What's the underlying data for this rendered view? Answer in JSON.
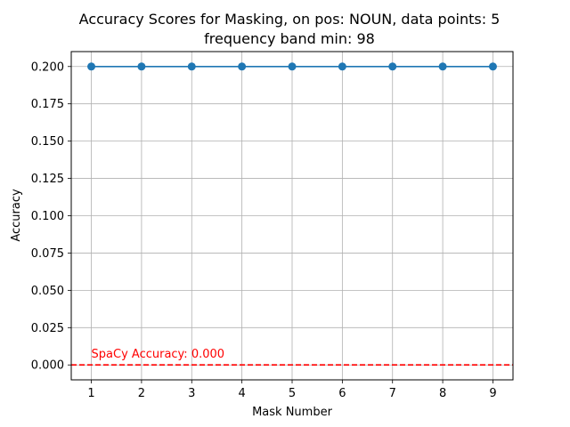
{
  "chart_data": {
    "type": "line",
    "title_line1": "Accuracy Scores for Masking, on pos: NOUN, data points: 5",
    "title_line2": "frequency band min: 98",
    "xlabel": "Mask Number",
    "ylabel": "Accuracy",
    "x": [
      1,
      2,
      3,
      4,
      5,
      6,
      7,
      8,
      9
    ],
    "series": [
      {
        "values": [
          0.2,
          0.2,
          0.2,
          0.2,
          0.2,
          0.2,
          0.2,
          0.2,
          0.2
        ],
        "color": "#1f77b4",
        "marker": "circle"
      }
    ],
    "xlim": [
      0.6,
      9.4
    ],
    "ylim": [
      -0.01,
      0.21
    ],
    "xticks": [
      "1",
      "2",
      "3",
      "4",
      "5",
      "6",
      "7",
      "8",
      "9"
    ],
    "yticks": [
      "0.000",
      "0.025",
      "0.050",
      "0.075",
      "0.100",
      "0.125",
      "0.150",
      "0.175",
      "0.200"
    ],
    "ytick_values": [
      0,
      0.025,
      0.05,
      0.075,
      0.1,
      0.125,
      0.15,
      0.175,
      0.2
    ],
    "grid": true,
    "reference_line": {
      "y": 0.0,
      "color": "#ff0000",
      "style": "dashed"
    },
    "annotation": {
      "text": "SpaCy Accuracy: 0.000",
      "x": 1,
      "y": 0.0,
      "color": "#ff0000"
    }
  }
}
